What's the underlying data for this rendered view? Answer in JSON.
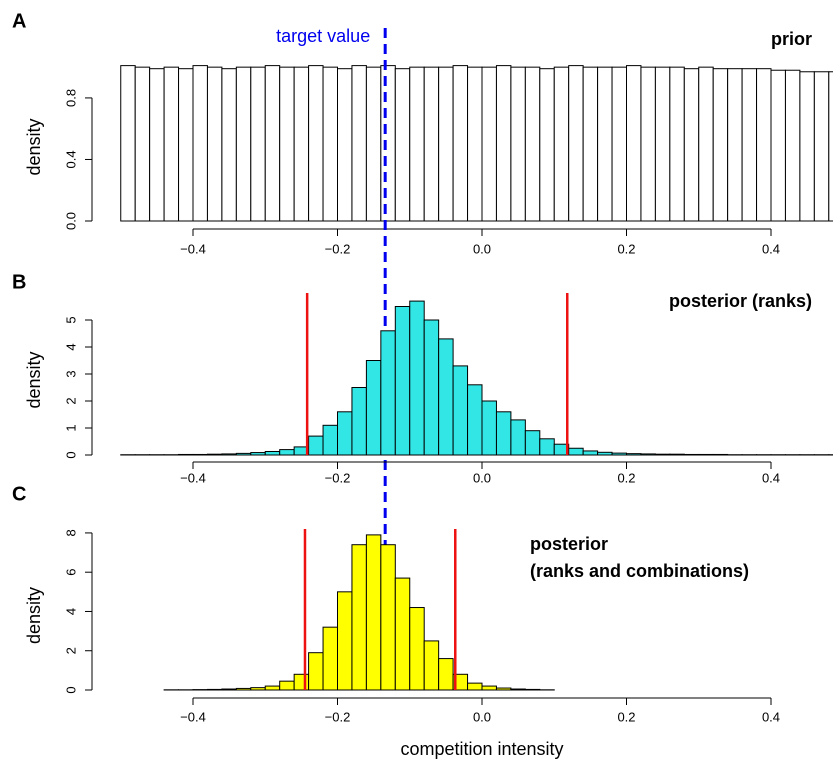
{
  "chart_data": [
    {
      "type": "histogram",
      "panel_label": "A",
      "title": "prior",
      "y_label": "density",
      "color": "#ffffff",
      "bins": [
        -0.5,
        -0.48,
        -0.46,
        -0.44,
        -0.42,
        -0.4,
        -0.38,
        -0.36,
        -0.34,
        -0.32,
        -0.3,
        -0.28,
        -0.26,
        -0.24,
        -0.22,
        -0.2,
        -0.18,
        -0.16,
        -0.14,
        -0.12,
        -0.1,
        -0.08,
        -0.06,
        -0.04,
        -0.02,
        0,
        0.02,
        0.04,
        0.06,
        0.08,
        0.1,
        0.12,
        0.14,
        0.16,
        0.18,
        0.2,
        0.22,
        0.24,
        0.26,
        0.28,
        0.3,
        0.32,
        0.34,
        0.36,
        0.38,
        0.4,
        0.42,
        0.44,
        0.46,
        0.48,
        0.5
      ],
      "values": [
        1.01,
        1.0,
        0.99,
        1.0,
        0.99,
        1.01,
        1.0,
        0.99,
        1.0,
        1.0,
        1.01,
        1.0,
        1.0,
        1.01,
        1.0,
        0.99,
        1.01,
        1.0,
        1.01,
        0.99,
        1.0,
        1.0,
        1.0,
        1.01,
        1.0,
        1.0,
        1.01,
        1.0,
        1.0,
        0.99,
        1.0,
        1.01,
        1.0,
        1.0,
        1.0,
        1.01,
        1.0,
        1.0,
        1.0,
        0.99,
        1.0,
        0.99,
        0.99,
        0.99,
        0.99,
        0.98,
        0.98,
        0.97,
        0.97,
        0.97
      ],
      "xlim": [
        -0.5,
        0.5
      ],
      "ylim": [
        0,
        1.04
      ],
      "xticks": [
        {
          "value": -0.4,
          "label": "−0.4"
        },
        {
          "value": -0.2,
          "label": "−0.2"
        },
        {
          "value": 0,
          "label": "0.0"
        },
        0.2,
        0.4
      ],
      "yticks": [
        {
          "value": 0,
          "label": "0.0"
        },
        0.4,
        0.8
      ],
      "annotation": {
        "text": "target value",
        "x": -0.134,
        "color": "#0000ee"
      }
    },
    {
      "type": "histogram",
      "panel_label": "B",
      "title": "posterior (ranks)",
      "y_label": "density",
      "color": "#33e6e6",
      "bins": [
        -0.5,
        -0.48,
        -0.46,
        -0.44,
        -0.42,
        -0.4,
        -0.38,
        -0.36,
        -0.34,
        -0.32,
        -0.3,
        -0.28,
        -0.26,
        -0.24,
        -0.22,
        -0.2,
        -0.18,
        -0.16,
        -0.14,
        -0.12,
        -0.1,
        -0.08,
        -0.06,
        -0.04,
        -0.02,
        0,
        0.02,
        0.04,
        0.06,
        0.08,
        0.1,
        0.12,
        0.14,
        0.16,
        0.18,
        0.2,
        0.22,
        0.24,
        0.26,
        0.28,
        0.3,
        0.32,
        0.34,
        0.36,
        0.38,
        0.4,
        0.42,
        0.44,
        0.46,
        0.48,
        0.5
      ],
      "values": [
        0.01,
        0.01,
        0.01,
        0.01,
        0.02,
        0.02,
        0.03,
        0.04,
        0.06,
        0.09,
        0.13,
        0.2,
        0.3,
        0.7,
        1.1,
        1.6,
        2.5,
        3.5,
        4.6,
        5.5,
        5.7,
        5.0,
        4.3,
        3.3,
        2.6,
        2.0,
        1.6,
        1.3,
        0.9,
        0.6,
        0.4,
        0.25,
        0.15,
        0.1,
        0.07,
        0.05,
        0.04,
        0.03,
        0.03,
        0.02,
        0.02,
        0.02,
        0.01,
        0.01,
        0.01,
        0.01,
        0.01,
        0.01,
        0.01,
        0.01
      ],
      "xlim": [
        -0.5,
        0.5
      ],
      "ylim": [
        0,
        6
      ],
      "xticks": [
        {
          "value": -0.4,
          "label": "−0.4"
        },
        {
          "value": -0.2,
          "label": "−0.2"
        },
        {
          "value": 0,
          "label": "0.0"
        },
        0.2,
        0.4
      ],
      "yticks": [
        0,
        1,
        2,
        3,
        4,
        5
      ],
      "interval": [
        -0.242,
        0.118
      ],
      "interval_color": "#ee1111"
    },
    {
      "type": "histogram",
      "panel_label": "C",
      "title": [
        "posterior",
        "(ranks and combinations)"
      ],
      "y_label": "density",
      "x_label": "competition intensity",
      "color": "#ffff00",
      "bins": [
        -0.44,
        -0.42,
        -0.4,
        -0.38,
        -0.36,
        -0.34,
        -0.32,
        -0.3,
        -0.28,
        -0.26,
        -0.24,
        -0.22,
        -0.2,
        -0.18,
        -0.16,
        -0.14,
        -0.12,
        -0.1,
        -0.08,
        -0.06,
        -0.04,
        -0.02,
        0,
        0.02,
        0.04,
        0.06,
        0.08,
        0.1
      ],
      "values": [
        0.01,
        0.01,
        0.02,
        0.03,
        0.05,
        0.08,
        0.12,
        0.2,
        0.45,
        0.8,
        1.9,
        3.2,
        5.0,
        7.4,
        7.9,
        7.4,
        5.7,
        4.2,
        2.5,
        1.6,
        0.8,
        0.35,
        0.2,
        0.1,
        0.05,
        0.03,
        0.01
      ],
      "xlim": [
        -0.5,
        0.5
      ],
      "ylim": [
        0,
        8.2
      ],
      "xticks": [
        {
          "value": -0.4,
          "label": "−0.4"
        },
        {
          "value": -0.2,
          "label": "−0.2"
        },
        {
          "value": 0,
          "label": "0.0"
        },
        0.2,
        0.4
      ],
      "yticks": [
        0,
        2,
        4,
        6,
        8
      ],
      "interval": [
        -0.245,
        -0.037
      ],
      "interval_color": "#ee1111"
    }
  ]
}
